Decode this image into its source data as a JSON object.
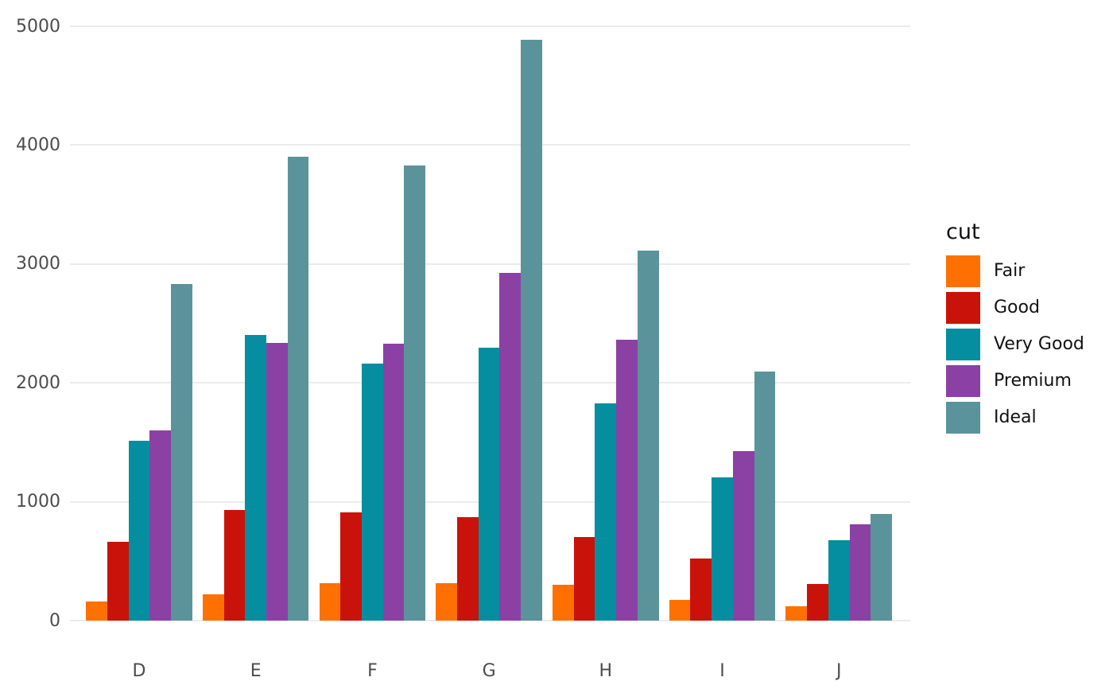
{
  "chart_data": {
    "type": "bar",
    "grouping": "dodge",
    "title": "",
    "xlabel": "",
    "ylabel": "",
    "categories": [
      "D",
      "E",
      "F",
      "G",
      "H",
      "I",
      "J"
    ],
    "series": [
      {
        "name": "Fair",
        "color": "#FE7002",
        "values": [
          163,
          224,
          312,
          314,
          303,
          175,
          119
        ]
      },
      {
        "name": "Good",
        "color": "#C9130A",
        "values": [
          662,
          933,
          909,
          871,
          702,
          522,
          307
        ]
      },
      {
        "name": "Very Good",
        "color": "#048EA0",
        "values": [
          1513,
          2400,
          2164,
          2299,
          1824,
          1204,
          678
        ]
      },
      {
        "name": "Premium",
        "color": "#8A41A3",
        "values": [
          1603,
          2337,
          2331,
          2924,
          2360,
          1428,
          808
        ]
      },
      {
        "name": "Ideal",
        "color": "#5B939B",
        "values": [
          2834,
          3903,
          3826,
          4884,
          3115,
          2093,
          896
        ]
      }
    ],
    "legend_title": "cut",
    "legend_position": "right",
    "y_ticks": [
      0,
      1000,
      2000,
      3000,
      4000,
      5000
    ],
    "ylim": [
      0,
      5000
    ],
    "grid": "horizontal-major-only",
    "background": "#FFFFFF",
    "gridline_color": "#EBEBEB",
    "axis_text_color": "#4C4C4C",
    "legend_text_color": "#111111"
  }
}
